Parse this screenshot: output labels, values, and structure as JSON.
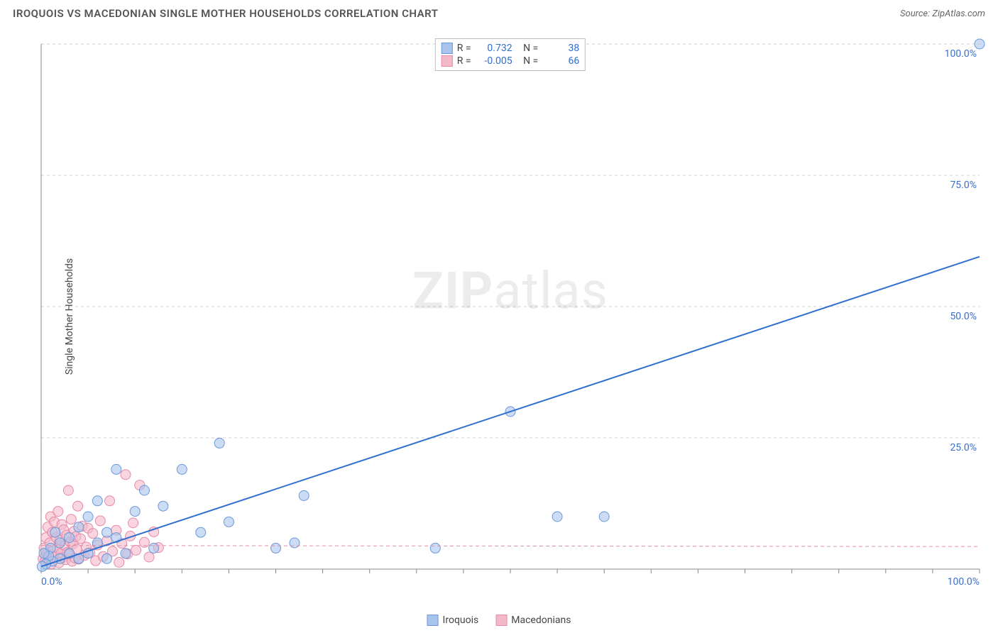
{
  "header": {
    "title": "IROQUOIS VS MACEDONIAN SINGLE MOTHER HOUSEHOLDS CORRELATION CHART",
    "source_label": "Source: ZipAtlas.com"
  },
  "ylabel": "Single Mother Households",
  "watermark": {
    "bold": "ZIP",
    "rest": "atlas"
  },
  "chart": {
    "type": "scatter",
    "xlim": [
      0,
      100
    ],
    "ylim": [
      0,
      100
    ],
    "x_ticks": [
      0,
      5,
      10,
      15,
      20,
      25,
      30,
      35,
      40,
      45,
      50,
      55,
      60,
      65,
      70,
      75,
      80,
      85,
      90,
      95,
      100
    ],
    "y_gridlines": [
      25,
      50,
      75,
      100
    ],
    "y_grid_labels": [
      "25.0%",
      "50.0%",
      "75.0%",
      "100.0%"
    ],
    "x_axis_start_label": "0.0%",
    "x_axis_end_label": "100.0%",
    "background_color": "#ffffff",
    "grid_color": "#cfcfcf",
    "grid_dash": "4,4",
    "axis_color": "#888888",
    "tick_color": "#888888",
    "axis_label_color": "#3b6fc9",
    "point_radius": 7,
    "point_stroke_width": 1,
    "series": [
      {
        "name": "Iroquois",
        "fill": "#a9c4ec",
        "stroke": "#6b98d8",
        "fill_opacity": 0.6,
        "trend": {
          "slope": 0.59,
          "intercept": 0.5,
          "color": "#2f6fd0",
          "width": 2,
          "dash": "none"
        },
        "r": "0.732",
        "n": "38",
        "points": [
          [
            100,
            100
          ],
          [
            55,
            10
          ],
          [
            60,
            10
          ],
          [
            42,
            4
          ],
          [
            50,
            30
          ],
          [
            28,
            14
          ],
          [
            27,
            5
          ],
          [
            25,
            4
          ],
          [
            20,
            9
          ],
          [
            19,
            24
          ],
          [
            17,
            7
          ],
          [
            15,
            19
          ],
          [
            13,
            12
          ],
          [
            12,
            4
          ],
          [
            11,
            15
          ],
          [
            10,
            11
          ],
          [
            9,
            3
          ],
          [
            8,
            6
          ],
          [
            8,
            19
          ],
          [
            7,
            7
          ],
          [
            7,
            2
          ],
          [
            6,
            13
          ],
          [
            6,
            5
          ],
          [
            5,
            10
          ],
          [
            5,
            3
          ],
          [
            4,
            8
          ],
          [
            4,
            2
          ],
          [
            3,
            6
          ],
          [
            3,
            3
          ],
          [
            2,
            5
          ],
          [
            2,
            2
          ],
          [
            1.5,
            7
          ],
          [
            1.2,
            1.5
          ],
          [
            1,
            4
          ],
          [
            0.8,
            2.5
          ],
          [
            0.5,
            1
          ],
          [
            0.3,
            3
          ],
          [
            0.1,
            0.5
          ]
        ]
      },
      {
        "name": "Macedonians",
        "fill": "#f4b9c9",
        "stroke": "#e68aa6",
        "fill_opacity": 0.6,
        "trend": {
          "slope": -0.002,
          "intercept": 4.5,
          "color": "#e68aa6",
          "width": 1,
          "dash": "5,4"
        },
        "r": "-0.005",
        "n": "66",
        "points": [
          [
            0.2,
            2
          ],
          [
            0.3,
            4
          ],
          [
            0.4,
            1.5
          ],
          [
            0.5,
            6
          ],
          [
            0.6,
            3
          ],
          [
            0.7,
            8
          ],
          [
            0.8,
            2
          ],
          [
            0.9,
            5
          ],
          [
            1.0,
            10
          ],
          [
            1.1,
            1
          ],
          [
            1.2,
            7
          ],
          [
            1.3,
            3.5
          ],
          [
            1.4,
            9
          ],
          [
            1.5,
            2.5
          ],
          [
            1.6,
            6
          ],
          [
            1.7,
            4
          ],
          [
            1.8,
            11
          ],
          [
            1.9,
            1.2
          ],
          [
            2.0,
            5.5
          ],
          [
            2.1,
            3
          ],
          [
            2.2,
            8.5
          ],
          [
            2.3,
            2.2
          ],
          [
            2.4,
            7.5
          ],
          [
            2.5,
            4.5
          ],
          [
            2.6,
            1.8
          ],
          [
            2.7,
            6.5
          ],
          [
            2.8,
            3.2
          ],
          [
            2.9,
            15
          ],
          [
            3.0,
            2.8
          ],
          [
            3.1,
            5.2
          ],
          [
            3.2,
            9.5
          ],
          [
            3.3,
            1.5
          ],
          [
            3.4,
            4.8
          ],
          [
            3.5,
            7.2
          ],
          [
            3.6,
            2.1
          ],
          [
            3.7,
            6.2
          ],
          [
            3.8,
            3.8
          ],
          [
            3.9,
            12
          ],
          [
            4.0,
            1.9
          ],
          [
            4.2,
            5.8
          ],
          [
            4.4,
            8.2
          ],
          [
            4.6,
            2.6
          ],
          [
            4.8,
            4.2
          ],
          [
            5.0,
            7.8
          ],
          [
            5.2,
            3.1
          ],
          [
            5.5,
            6.8
          ],
          [
            5.8,
            1.6
          ],
          [
            6.0,
            4.6
          ],
          [
            6.3,
            9.2
          ],
          [
            6.6,
            2.4
          ],
          [
            7.0,
            5.4
          ],
          [
            7.3,
            13
          ],
          [
            7.6,
            3.4
          ],
          [
            8.0,
            7.4
          ],
          [
            8.3,
            1.3
          ],
          [
            8.6,
            4.9
          ],
          [
            9.0,
            18
          ],
          [
            9.2,
            2.9
          ],
          [
            9.5,
            6.3
          ],
          [
            9.8,
            8.8
          ],
          [
            10.1,
            3.6
          ],
          [
            10.5,
            16
          ],
          [
            11.0,
            5.1
          ],
          [
            11.5,
            2.3
          ],
          [
            12.0,
            7.1
          ],
          [
            12.5,
            4.1
          ]
        ]
      }
    ]
  },
  "stats_box": {
    "r_label": "R =",
    "n_label": "N =",
    "value_color": "#2f6fd0"
  },
  "legend": {
    "items": [
      "Iroquois",
      "Macedonians"
    ]
  }
}
